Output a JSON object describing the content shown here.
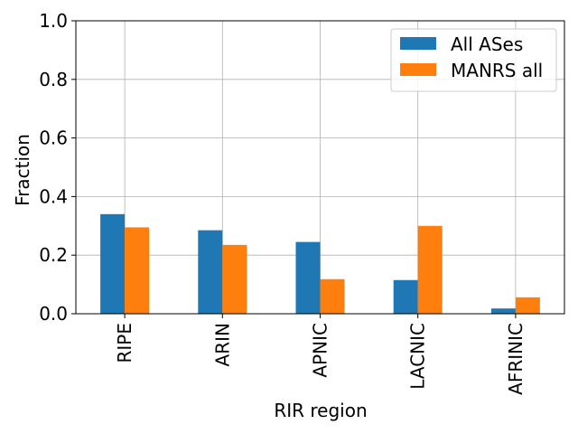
{
  "chart_data": {
    "type": "bar",
    "xlabel": "RIR region",
    "ylabel": "Fraction",
    "ylim": [
      0,
      1.0
    ],
    "yticks": [
      "0.0",
      "0.2",
      "0.4",
      "0.6",
      "0.8",
      "1.0"
    ],
    "grid": true,
    "legend_position": "top-right",
    "categories": [
      "RIPE",
      "ARIN",
      "APNIC",
      "LACNIC",
      "AFRINIC"
    ],
    "series": [
      {
        "name": "All ASes",
        "color": "#1f77b4",
        "values": [
          0.34,
          0.285,
          0.245,
          0.115,
          0.018
        ]
      },
      {
        "name": "MANRS all",
        "color": "#ff7f0e",
        "values": [
          0.295,
          0.235,
          0.118,
          0.3,
          0.056
        ]
      }
    ]
  }
}
